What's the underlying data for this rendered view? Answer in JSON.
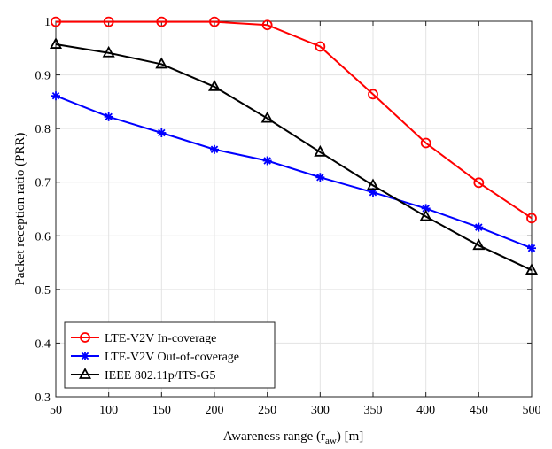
{
  "chart_data": {
    "type": "line",
    "title": "",
    "xlabel": "Awareness range (r",
    "xlabel_sub": "aw",
    "xlabel_suffix": ") [m]",
    "ylabel": "Packet reception ratio (PRR)",
    "x": [
      50,
      100,
      150,
      200,
      250,
      300,
      350,
      400,
      450,
      500
    ],
    "xlim": [
      50,
      500
    ],
    "ylim": [
      0.3,
      1.0
    ],
    "xticks": [
      "50",
      "100",
      "150",
      "200",
      "250",
      "300",
      "350",
      "400",
      "450",
      "500"
    ],
    "yticks": [
      "0.3",
      "0.4",
      "0.5",
      "0.6",
      "0.7",
      "0.8",
      "0.9",
      "1"
    ],
    "grid": true,
    "legend_position": "bottom-left",
    "series": [
      {
        "name": "LTE-V2V In-coverage",
        "color": "#ff0000",
        "marker": "circle",
        "values": [
          0.999,
          0.999,
          0.999,
          0.999,
          0.993,
          0.953,
          0.864,
          0.773,
          0.699,
          0.633
        ]
      },
      {
        "name": "LTE-V2V Out-of-coverage",
        "color": "#0000ff",
        "marker": "asterisk",
        "values": [
          0.861,
          0.822,
          0.792,
          0.761,
          0.74,
          0.709,
          0.681,
          0.651,
          0.616,
          0.577
        ]
      },
      {
        "name": "IEEE 802.11p/ITS-G5",
        "color": "#000000",
        "marker": "triangle",
        "values": [
          0.957,
          0.941,
          0.92,
          0.878,
          0.819,
          0.756,
          0.694,
          0.636,
          0.582,
          0.536
        ]
      }
    ]
  }
}
